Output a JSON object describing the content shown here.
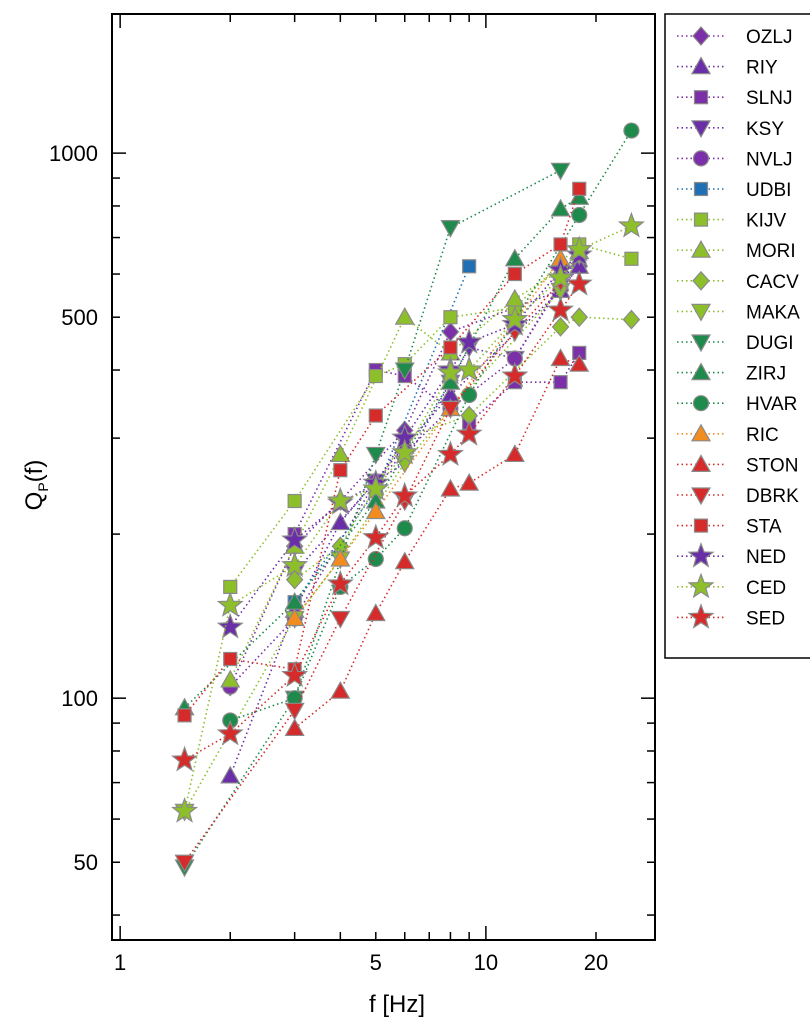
{
  "chart_data": {
    "type": "scatter",
    "title": "",
    "xlabel": "f [Hz]",
    "ylabel_main": "Q",
    "ylabel_sub": "P",
    "ylabel_tail": "(f)",
    "xscale": "log",
    "yscale": "log",
    "xlim": [
      0.95,
      29
    ],
    "ylim": [
      36,
      1800
    ],
    "x_ticks": [
      1,
      5,
      10,
      20
    ],
    "x_tick_labels": [
      "1",
      "5",
      "10",
      "20"
    ],
    "y_ticks": [
      50,
      100,
      500,
      1000
    ],
    "y_tick_labels": [
      "50",
      "100",
      "500",
      "1000"
    ],
    "grid": false,
    "legend_position": "right",
    "line_style": "dotted",
    "series": [
      {
        "name": "OZLJ",
        "marker": "diamond",
        "color": "#7B2FA8",
        "x": [
          2,
          3,
          4,
          6,
          8,
          16,
          18
        ],
        "y": [
          105,
          190,
          230,
          310,
          470,
          560,
          620
        ]
      },
      {
        "name": "RIY",
        "marker": "triangle-up",
        "color": "#6A2FA8",
        "x": [
          2,
          3,
          4,
          6,
          8,
          16,
          18
        ],
        "y": [
          72,
          145,
          210,
          290,
          360,
          560,
          620
        ]
      },
      {
        "name": "SLNJ",
        "marker": "square",
        "color": "#7B2FA8",
        "x": [
          3,
          5,
          6,
          9,
          12,
          16,
          18
        ],
        "y": [
          200,
          400,
          390,
          320,
          380,
          380,
          430
        ]
      },
      {
        "name": "KSY",
        "marker": "triangle-down",
        "color": "#6A2FA8",
        "x": [
          3,
          5,
          6,
          8,
          9,
          12,
          18
        ],
        "y": [
          170,
          250,
          270,
          380,
          440,
          420,
          650
        ]
      },
      {
        "name": "NVLJ",
        "marker": "circle",
        "color": "#7B2FA8",
        "x": [
          2,
          3,
          5,
          8,
          12,
          18
        ],
        "y": [
          105,
          140,
          250,
          340,
          420,
          660
        ]
      },
      {
        "name": "UDBI",
        "marker": "square",
        "color": "#1F6FB4",
        "x": [
          3,
          5,
          9
        ],
        "y": [
          150,
          240,
          620
        ]
      },
      {
        "name": "KIJV",
        "marker": "square",
        "color": "#8DBF2A",
        "x": [
          2,
          3,
          5,
          6,
          8,
          12,
          18,
          25
        ],
        "y": [
          160,
          230,
          390,
          410,
          500,
          520,
          680,
          640
        ]
      },
      {
        "name": "MORI",
        "marker": "triangle-up",
        "color": "#8DBF2A",
        "x": [
          2,
          3,
          4,
          6,
          8,
          12,
          16,
          18
        ],
        "y": [
          108,
          190,
          280,
          500,
          430,
          540,
          610,
          660
        ]
      },
      {
        "name": "CACV",
        "marker": "diamond",
        "color": "#8DBF2A",
        "x": [
          3,
          4,
          6,
          9,
          16,
          18,
          25
        ],
        "y": [
          165,
          190,
          300,
          330,
          480,
          500,
          495
        ]
      },
      {
        "name": "MAKA",
        "marker": "triangle-down",
        "color": "#8DBF2A",
        "x": [
          1.5,
          3,
          4,
          6,
          8,
          16,
          18
        ],
        "y": [
          62,
          140,
          180,
          270,
          340,
          560,
          650
        ]
      },
      {
        "name": "DUGI",
        "marker": "triangle-down",
        "color": "#1E8A4C",
        "x": [
          1.5,
          3,
          5,
          6,
          8,
          16
        ],
        "y": [
          49,
          100,
          280,
          400,
          730,
          930
        ]
      },
      {
        "name": "ZIRJ",
        "marker": "triangle-up",
        "color": "#1E8A4C",
        "x": [
          1.5,
          3,
          5,
          8,
          12,
          16,
          18
        ],
        "y": [
          96,
          150,
          230,
          380,
          640,
          790,
          830
        ]
      },
      {
        "name": "HVAR",
        "marker": "circle",
        "color": "#1E8A4C",
        "x": [
          2,
          3,
          4,
          5,
          6,
          9,
          18,
          25
        ],
        "y": [
          91,
          100,
          160,
          180,
          205,
          360,
          770,
          1100
        ]
      },
      {
        "name": "RIC",
        "marker": "triangle-up",
        "color": "#F28C1E",
        "x": [
          3,
          4,
          5,
          8,
          16
        ],
        "y": [
          140,
          180,
          220,
          340,
          640
        ]
      },
      {
        "name": "STON",
        "marker": "triangle-up",
        "color": "#D62B2B",
        "x": [
          3,
          4,
          5,
          6,
          8,
          9,
          12,
          16,
          18
        ],
        "y": [
          88,
          103,
          143,
          178,
          242,
          248,
          280,
          420,
          410
        ]
      },
      {
        "name": "DBRK",
        "marker": "triangle-down",
        "color": "#D62B2B",
        "x": [
          1.5,
          3,
          4,
          6,
          8,
          12,
          16
        ],
        "y": [
          50,
          95,
          140,
          230,
          340,
          470,
          580
        ]
      },
      {
        "name": "STA",
        "marker": "square",
        "color": "#D62B2B",
        "x": [
          1.5,
          2,
          3,
          4,
          5,
          8,
          12,
          16,
          18
        ],
        "y": [
          93,
          118,
          113,
          262,
          330,
          440,
          600,
          680,
          860
        ]
      },
      {
        "name": "NED",
        "marker": "star",
        "color": "#6A2FA8",
        "x": [
          2,
          3,
          4,
          5,
          6,
          8,
          9,
          12,
          16,
          18
        ],
        "y": [
          135,
          195,
          228,
          248,
          300,
          400,
          450,
          485,
          610,
          650
        ]
      },
      {
        "name": "CED",
        "marker": "star",
        "color": "#8DBF2A",
        "x": [
          1.5,
          2,
          3,
          4,
          5,
          6,
          8,
          9,
          12,
          16,
          18,
          25
        ],
        "y": [
          62,
          148,
          175,
          230,
          242,
          282,
          395,
          400,
          495,
          590,
          665,
          735
        ]
      },
      {
        "name": "SED",
        "marker": "star",
        "color": "#D62B2B",
        "x": [
          1.5,
          2,
          3,
          4,
          5,
          6,
          8,
          9,
          12,
          16,
          18
        ],
        "y": [
          77,
          86,
          110,
          162,
          197,
          235,
          280,
          305,
          390,
          515,
          575
        ]
      }
    ]
  }
}
